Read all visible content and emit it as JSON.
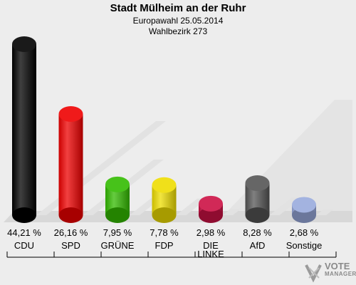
{
  "header": {
    "title": "Stadt Mülheim an der Ruhr",
    "subtitle1": "Europawahl 25.05.2014",
    "subtitle2": "Wahlbezirk 273"
  },
  "brand": {
    "line1": "VOTE",
    "line2": "MANAGER"
  },
  "chart_data": {
    "type": "bar",
    "title": "Stadt Mülheim an der Ruhr",
    "subtitle": "Europawahl 25.05.2014 / Wahlbezirk 273",
    "categories": [
      "CDU",
      "SPD",
      "GRÜNE",
      "FDP",
      "DIE LINKE",
      "AfD",
      "Sonstige"
    ],
    "category_lines": [
      [
        "CDU"
      ],
      [
        "SPD"
      ],
      [
        "GRÜNE"
      ],
      [
        "FDP"
      ],
      [
        "DIE",
        "LINKE"
      ],
      [
        "AfD"
      ],
      [
        "Sonstige"
      ]
    ],
    "values": [
      44.21,
      26.16,
      7.95,
      7.78,
      2.98,
      8.28,
      2.68
    ],
    "labels": [
      "44,21 %",
      "26,16 %",
      "7,95 %",
      "7,78 %",
      "2,98 %",
      "8,28 %",
      "2,68 %"
    ],
    "colors": [
      "#000000",
      "#ee0000",
      "#33bb00",
      "#eedd00",
      "#cc1144",
      "#555555",
      "#99aadd"
    ],
    "ylim": [
      0,
      44.21
    ],
    "grid": false
  }
}
